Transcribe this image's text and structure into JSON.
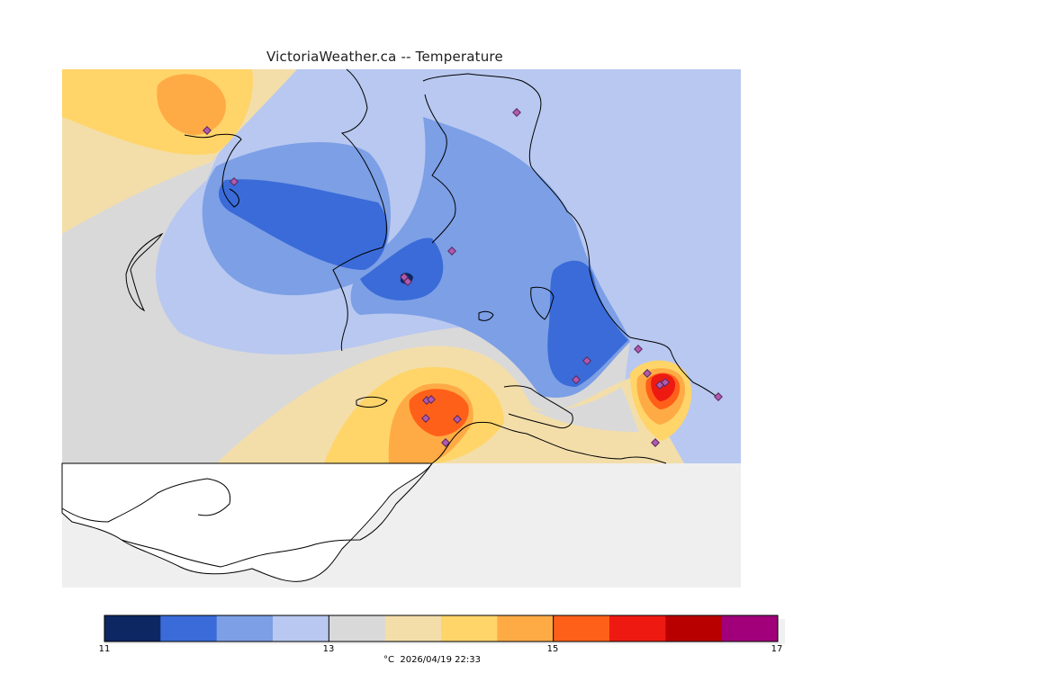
{
  "title": "VictoriaWeather.ca -- Temperature",
  "colors": {
    "land_bg": "#efefef",
    "water": "#ffffff",
    "coast": "#000000",
    "station_marker": "#b05ab0"
  },
  "legend": {
    "colors": [
      "#0d2763",
      "#3a6bd8",
      "#7c9fe6",
      "#b8c8f0",
      "#d9d9d9",
      "#f3deaa",
      "#ffd56a",
      "#ffab45",
      "#ff6019",
      "#ee1a12",
      "#b90000",
      "#a1007a"
    ],
    "min": 11,
    "max": 17,
    "tick_labels": [
      "11",
      "13",
      "15",
      "17"
    ],
    "tick_values": [
      11,
      13,
      15,
      17
    ]
  },
  "caption": {
    "units": "°C",
    "timestamp": "2026/04/19 22:33"
  },
  "stations": {
    "count": 19
  }
}
